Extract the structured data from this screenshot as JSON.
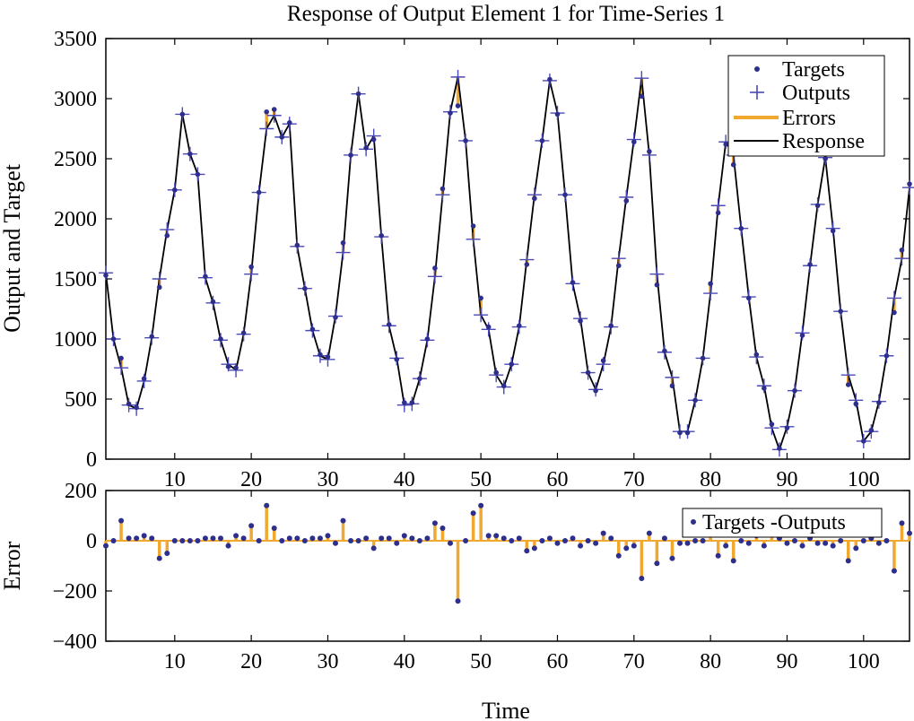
{
  "chart_data": [
    {
      "type": "line",
      "title": "Response of Output Element 1 for Time-Series 1",
      "xlabel": "",
      "ylabel": "Output and Target",
      "xlim": [
        1,
        106
      ],
      "ylim": [
        0,
        3500
      ],
      "yticks": [
        0,
        500,
        1000,
        1500,
        2000,
        2500,
        3000,
        3500
      ],
      "xticks": [
        10,
        20,
        30,
        40,
        50,
        60,
        70,
        80,
        90,
        100
      ],
      "legend_position": "top-right",
      "legend": [
        "Targets",
        "Outputs",
        "Errors",
        "Response"
      ],
      "colors": {
        "targets": "#2e2e8c",
        "outputs": "#4a4ab8",
        "errors": "#f0a830",
        "response": "#000000"
      },
      "x": [
        1,
        2,
        3,
        4,
        5,
        6,
        7,
        8,
        9,
        10,
        11,
        12,
        13,
        14,
        15,
        16,
        17,
        18,
        19,
        20,
        21,
        22,
        23,
        24,
        25,
        26,
        27,
        28,
        29,
        30,
        31,
        32,
        33,
        34,
        35,
        36,
        37,
        38,
        39,
        40,
        41,
        42,
        43,
        44,
        45,
        46,
        47,
        48,
        49,
        50,
        51,
        52,
        53,
        54,
        55,
        56,
        57,
        58,
        59,
        60,
        61,
        62,
        63,
        64,
        65,
        66,
        67,
        68,
        69,
        70,
        71,
        72,
        73,
        74,
        75,
        76,
        77,
        78,
        79,
        80,
        81,
        82,
        83,
        84,
        85,
        86,
        87,
        88,
        89,
        90,
        91,
        92,
        93,
        94,
        95,
        96,
        97,
        98,
        99,
        100,
        101,
        102,
        103,
        104,
        105,
        106
      ],
      "series": [
        {
          "name": "Targets",
          "values": [
            1530,
            1000,
            840,
            460,
            430,
            670,
            1020,
            1430,
            1860,
            2240,
            2870,
            2540,
            2370,
            1520,
            1310,
            1000,
            770,
            760,
            1050,
            1600,
            2220,
            2890,
            2910,
            2680,
            2800,
            1780,
            1420,
            1080,
            870,
            850,
            1180,
            1800,
            2530,
            3040,
            2590,
            2660,
            1860,
            1120,
            830,
            470,
            470,
            670,
            1000,
            1590,
            2250,
            2880,
            2940,
            2650,
            1940,
            1340,
            1100,
            720,
            610,
            790,
            1110,
            1620,
            2170,
            2650,
            3160,
            2870,
            2200,
            1470,
            1150,
            720,
            570,
            820,
            1110,
            1610,
            2150,
            2640,
            3020,
            2560,
            1450,
            900,
            610,
            220,
            220,
            490,
            840,
            1460,
            2050,
            2620,
            2450,
            1920,
            1340,
            870,
            590,
            290,
            90,
            260,
            570,
            1030,
            1620,
            2110,
            2500,
            1900,
            1230,
            620,
            460,
            150,
            240,
            470,
            860,
            1220,
            1740,
            2290
          ]
        },
        {
          "name": "Outputs",
          "values": [
            1550,
            1000,
            760,
            450,
            420,
            650,
            1010,
            1500,
            1910,
            2240,
            2870,
            2540,
            2370,
            1510,
            1300,
            990,
            790,
            740,
            1040,
            1540,
            2220,
            2750,
            2860,
            2680,
            2790,
            1770,
            1420,
            1070,
            860,
            830,
            1190,
            1720,
            2530,
            3040,
            2580,
            2690,
            1850,
            1110,
            840,
            450,
            460,
            670,
            990,
            1520,
            2200,
            2890,
            3180,
            2650,
            1830,
            1200,
            1080,
            700,
            600,
            790,
            1100,
            1660,
            2200,
            2650,
            3150,
            2880,
            2200,
            1460,
            1170,
            720,
            580,
            790,
            1100,
            1670,
            2180,
            2660,
            3170,
            2530,
            1540,
            890,
            680,
            230,
            230,
            490,
            840,
            1380,
            2110,
            2640,
            2530,
            1920,
            1350,
            850,
            610,
            260,
            80,
            270,
            570,
            1050,
            1610,
            2120,
            2510,
            1920,
            1230,
            700,
            490,
            150,
            230,
            480,
            860,
            1340,
            1670,
            2260
          ]
        },
        {
          "name": "Targets -Outputs",
          "values": [
            -20,
            0,
            80,
            10,
            10,
            20,
            10,
            -70,
            -50,
            0,
            0,
            0,
            0,
            10,
            10,
            10,
            -20,
            20,
            10,
            60,
            0,
            140,
            50,
            0,
            10,
            10,
            0,
            10,
            10,
            20,
            -10,
            80,
            0,
            0,
            10,
            -30,
            10,
            10,
            -10,
            20,
            10,
            0,
            10,
            70,
            50,
            -10,
            -240,
            0,
            110,
            140,
            20,
            20,
            10,
            0,
            10,
            -40,
            -30,
            0,
            10,
            -10,
            0,
            10,
            -20,
            0,
            -10,
            30,
            10,
            -60,
            -30,
            -20,
            -150,
            30,
            -90,
            10,
            -70,
            -10,
            -10,
            0,
            0,
            80,
            -60,
            -20,
            -80,
            0,
            -10,
            20,
            -20,
            30,
            10,
            -10,
            0,
            -20,
            10,
            -10,
            -10,
            -20,
            0,
            -80,
            -30,
            0,
            10,
            -10,
            0,
            -120,
            70,
            30
          ]
        }
      ]
    },
    {
      "type": "bar",
      "title": "",
      "xlabel": "Time",
      "ylabel": "Error",
      "xlim": [
        1,
        106
      ],
      "ylim": [
        -400,
        200
      ],
      "yticks": [
        -400,
        -200,
        0,
        200
      ],
      "xticks": [
        10,
        20,
        30,
        40,
        50,
        60,
        70,
        80,
        90,
        100
      ],
      "legend_position": "top-right",
      "legend": [
        "Targets -Outputs"
      ]
    }
  ]
}
